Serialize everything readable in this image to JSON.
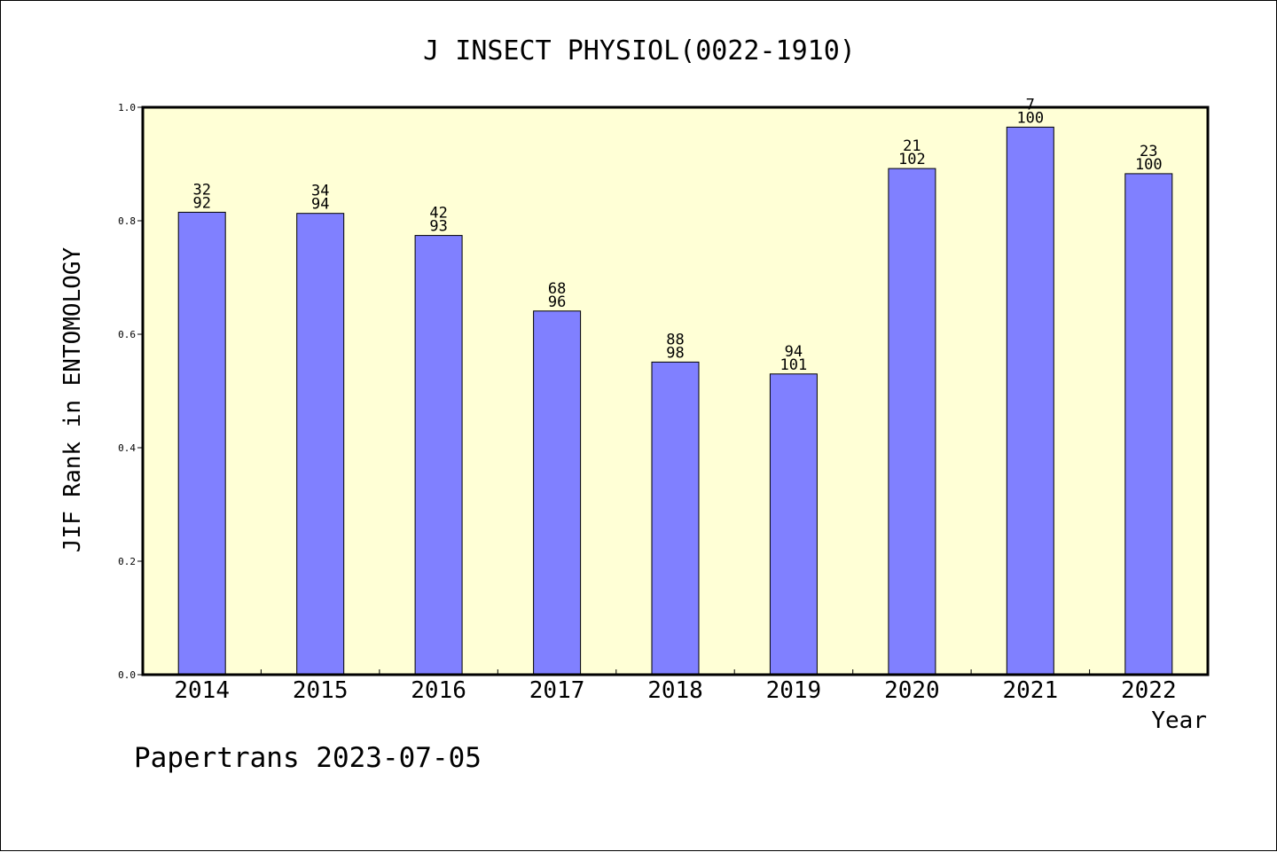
{
  "title": "J INSECT PHYSIOL(0022-1910)",
  "footer": "Papertrans 2023-07-05",
  "colors": {
    "plot_background": "#ffffd6",
    "bar_fill": "#8080ff",
    "bar_stroke": "#000000",
    "axis": "#000000"
  },
  "chart_data": {
    "type": "bar",
    "title": "J INSECT PHYSIOL(0022-1910)",
    "xlabel": "Year",
    "ylabel": "JIF Rank in ENTOMOLOGY",
    "ylim": [
      0,
      1.0
    ],
    "yticks": [
      "0.0",
      "0.2",
      "0.4",
      "0.6",
      "0.8",
      "1.0"
    ],
    "grid": false,
    "categories": [
      "2014",
      "2015",
      "2016",
      "2017",
      "2018",
      "2019",
      "2020",
      "2021",
      "2022"
    ],
    "values": [
      0.815,
      0.813,
      0.774,
      0.641,
      0.551,
      0.53,
      0.892,
      0.965,
      0.883
    ],
    "labels": [
      {
        "top": "32",
        "bottom": "92"
      },
      {
        "top": "34",
        "bottom": "94"
      },
      {
        "top": "42",
        "bottom": "93"
      },
      {
        "top": "68",
        "bottom": "96"
      },
      {
        "top": "88",
        "bottom": "98"
      },
      {
        "top": "94",
        "bottom": "101"
      },
      {
        "top": "21",
        "bottom": "102"
      },
      {
        "top": "7",
        "bottom": "100"
      },
      {
        "top": "23",
        "bottom": "100"
      }
    ]
  }
}
